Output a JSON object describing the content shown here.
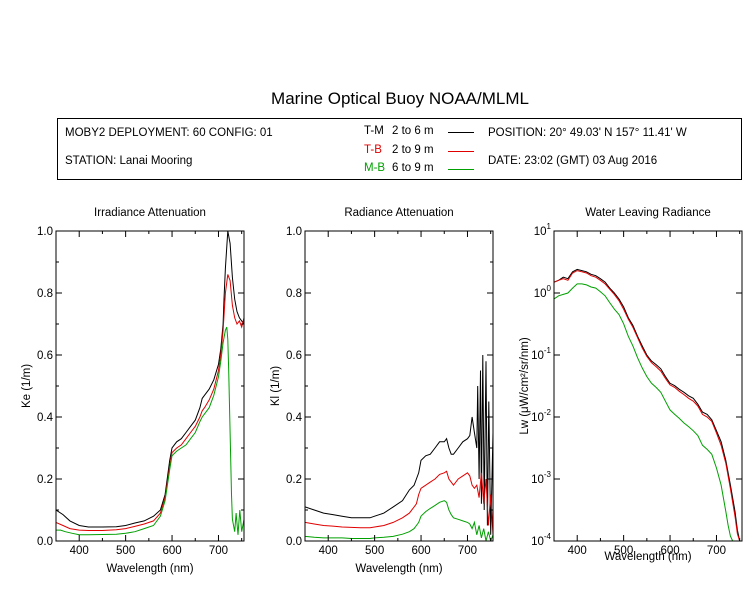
{
  "title": "Marine Optical Buoy NOAA/MLML",
  "info": {
    "deployment": "MOBY2 DEPLOYMENT: 60 CONFIG: 01",
    "station": "STATION: Lanai Mooring",
    "position": "POSITION: 20° 49.03' N   157° 11.41' W",
    "date": "DATE: 23:02 (GMT) 03 Aug 2016",
    "legend": [
      {
        "code": "T-M",
        "range": "2 to 6  m",
        "color": "#000000"
      },
      {
        "code": "T-B",
        "range": "2 to 9  m",
        "color": "#e00000"
      },
      {
        "code": "M-B",
        "range": "6 to 9  m",
        "color": "#00a000"
      }
    ]
  },
  "colors": {
    "tm": "#000000",
    "tb": "#e00000",
    "mb": "#00a000"
  },
  "chart_data": [
    {
      "type": "line",
      "title": "Irradiance Attenuation",
      "xlabel": "Wavelength (nm)",
      "ylabel": "Ke  (1/m)",
      "xlim": [
        350,
        755
      ],
      "ylim": [
        0,
        1
      ],
      "xticks": [
        400,
        500,
        600,
        700
      ],
      "yticks": [
        0,
        0.2,
        0.4,
        0.6,
        0.8,
        1.0
      ],
      "ytick_labels": [
        "0.0",
        "0.2",
        "0.4",
        "0.6",
        "0.8",
        "1.0"
      ],
      "series": [
        {
          "name": "T-M",
          "x": [
            350,
            365,
            380,
            400,
            420,
            450,
            480,
            500,
            520,
            540,
            560,
            575,
            585,
            595,
            600,
            610,
            620,
            630,
            640,
            650,
            660,
            665,
            670,
            680,
            690,
            700,
            705,
            710,
            712,
            715,
            718,
            720,
            725,
            730,
            735,
            740,
            745,
            750,
            755
          ],
          "y": [
            0.1,
            0.085,
            0.065,
            0.05,
            0.045,
            0.045,
            0.046,
            0.05,
            0.058,
            0.065,
            0.08,
            0.1,
            0.15,
            0.26,
            0.3,
            0.32,
            0.33,
            0.35,
            0.37,
            0.39,
            0.43,
            0.46,
            0.47,
            0.49,
            0.52,
            0.57,
            0.62,
            0.7,
            0.78,
            0.88,
            0.95,
            1.0,
            0.96,
            0.85,
            0.78,
            0.74,
            0.72,
            0.71,
            0.7
          ]
        },
        {
          "name": "T-B",
          "x": [
            350,
            365,
            380,
            400,
            420,
            450,
            480,
            500,
            520,
            540,
            560,
            575,
            585,
            595,
            600,
            610,
            620,
            630,
            640,
            650,
            660,
            665,
            670,
            680,
            690,
            700,
            705,
            710,
            715,
            720,
            725,
            730,
            735,
            740,
            745,
            750,
            755
          ],
          "y": [
            0.06,
            0.05,
            0.04,
            0.035,
            0.034,
            0.034,
            0.036,
            0.04,
            0.047,
            0.055,
            0.065,
            0.09,
            0.14,
            0.24,
            0.285,
            0.3,
            0.31,
            0.33,
            0.35,
            0.37,
            0.4,
            0.42,
            0.43,
            0.455,
            0.49,
            0.55,
            0.6,
            0.68,
            0.8,
            0.86,
            0.84,
            0.76,
            0.72,
            0.7,
            0.71,
            0.69,
            0.72
          ]
        },
        {
          "name": "M-B",
          "x": [
            350,
            360,
            370,
            385,
            400,
            420,
            450,
            480,
            500,
            520,
            540,
            560,
            575,
            585,
            595,
            600,
            610,
            620,
            630,
            640,
            650,
            660,
            665,
            670,
            680,
            690,
            700,
            705,
            710,
            715,
            718,
            720,
            722,
            725,
            728,
            730,
            735,
            738,
            742,
            746,
            750,
            755
          ],
          "y": [
            0.035,
            0.035,
            0.03,
            0.025,
            0.02,
            0.02,
            0.021,
            0.022,
            0.025,
            0.03,
            0.04,
            0.05,
            0.08,
            0.13,
            0.23,
            0.275,
            0.29,
            0.3,
            0.31,
            0.33,
            0.35,
            0.385,
            0.4,
            0.41,
            0.43,
            0.47,
            0.53,
            0.58,
            0.64,
            0.68,
            0.69,
            0.65,
            0.55,
            0.35,
            0.15,
            0.07,
            0.03,
            0.09,
            0.02,
            0.1,
            0.03,
            0.07
          ]
        }
      ]
    },
    {
      "type": "line",
      "title": "Radiance Attenuation",
      "xlabel": "Wavelength (nm)",
      "ylabel": "Kl  (1/m)",
      "xlim": [
        350,
        755
      ],
      "ylim": [
        0,
        1
      ],
      "xticks": [
        400,
        500,
        600,
        700
      ],
      "yticks": [
        0,
        0.2,
        0.4,
        0.6,
        0.8,
        1.0
      ],
      "ytick_labels": [
        "0.0",
        "0.2",
        "0.4",
        "0.6",
        "0.8",
        "1.0"
      ],
      "series": [
        {
          "name": "T-M",
          "x": [
            350,
            370,
            390,
            410,
            430,
            450,
            470,
            490,
            500,
            520,
            540,
            560,
            575,
            585,
            590,
            595,
            600,
            610,
            620,
            630,
            640,
            650,
            655,
            660,
            665,
            670,
            680,
            690,
            700,
            705,
            710,
            715,
            720,
            722,
            725,
            728,
            730,
            733,
            736,
            740,
            743,
            746,
            750,
            755
          ],
          "y": [
            0.11,
            0.1,
            0.09,
            0.085,
            0.08,
            0.075,
            0.075,
            0.075,
            0.08,
            0.09,
            0.11,
            0.13,
            0.165,
            0.18,
            0.2,
            0.22,
            0.26,
            0.275,
            0.28,
            0.3,
            0.32,
            0.32,
            0.33,
            0.3,
            0.28,
            0.28,
            0.3,
            0.32,
            0.33,
            0.34,
            0.4,
            0.35,
            0.3,
            0.5,
            0.2,
            0.55,
            0.12,
            0.6,
            0.1,
            0.58,
            0.05,
            0.45,
            0.02,
            0.35
          ]
        },
        {
          "name": "T-B",
          "x": [
            350,
            370,
            390,
            410,
            430,
            450,
            470,
            490,
            500,
            520,
            540,
            560,
            575,
            585,
            590,
            595,
            600,
            610,
            620,
            630,
            640,
            650,
            655,
            660,
            665,
            670,
            680,
            690,
            700,
            705,
            710,
            715,
            720,
            725,
            730,
            735,
            740,
            745,
            750,
            755
          ],
          "y": [
            0.06,
            0.055,
            0.05,
            0.048,
            0.045,
            0.044,
            0.043,
            0.043,
            0.045,
            0.05,
            0.06,
            0.075,
            0.09,
            0.11,
            0.12,
            0.15,
            0.17,
            0.18,
            0.19,
            0.2,
            0.215,
            0.22,
            0.225,
            0.2,
            0.19,
            0.18,
            0.2,
            0.21,
            0.22,
            0.21,
            0.18,
            0.17,
            0.18,
            0.14,
            0.22,
            0.12,
            0.2,
            0.05,
            0.15,
            0.02
          ]
        },
        {
          "name": "M-B",
          "x": [
            350,
            370,
            390,
            410,
            430,
            450,
            470,
            490,
            500,
            520,
            540,
            560,
            575,
            585,
            590,
            595,
            600,
            610,
            620,
            630,
            640,
            650,
            655,
            660,
            665,
            670,
            680,
            690,
            700,
            705,
            710,
            715,
            720,
            725,
            730,
            735,
            740,
            745,
            750,
            755
          ],
          "y": [
            0.015,
            0.012,
            0.01,
            0.01,
            0.01,
            0.008,
            0.008,
            0.008,
            0.01,
            0.012,
            0.015,
            0.022,
            0.03,
            0.04,
            0.05,
            0.06,
            0.08,
            0.095,
            0.105,
            0.115,
            0.125,
            0.13,
            0.125,
            0.1,
            0.085,
            0.075,
            0.07,
            0.065,
            0.06,
            0.055,
            0.04,
            0.06,
            0.02,
            0.05,
            0.01,
            0.04,
            0.0,
            0.03,
            0.0,
            0.02
          ]
        }
      ]
    },
    {
      "type": "line",
      "title": "Water Leaving Radiance",
      "xlabel": "Wavelength (nm)",
      "ylabel": "Lw  (μW/cm²/sr/nm)",
      "xlim": [
        350,
        755
      ],
      "ylim": [
        0.0001,
        10
      ],
      "yscale": "log",
      "xticks": [
        400,
        500,
        600,
        700
      ],
      "ytick_exponents": [
        -4,
        -3,
        -2,
        -1,
        0,
        1
      ],
      "series": [
        {
          "name": "T-M",
          "x": [
            350,
            360,
            370,
            380,
            390,
            400,
            410,
            420,
            430,
            440,
            450,
            460,
            470,
            480,
            490,
            500,
            510,
            520,
            530,
            540,
            550,
            560,
            570,
            580,
            590,
            600,
            610,
            620,
            630,
            640,
            650,
            660,
            670,
            680,
            690,
            700,
            710,
            720,
            730,
            740,
            745,
            750
          ],
          "y": [
            1.5,
            1.6,
            1.8,
            1.7,
            2.2,
            2.4,
            2.3,
            2.2,
            2.0,
            1.9,
            1.7,
            1.5,
            1.2,
            1.0,
            0.8,
            0.6,
            0.4,
            0.3,
            0.2,
            0.14,
            0.1,
            0.08,
            0.07,
            0.06,
            0.045,
            0.035,
            0.032,
            0.028,
            0.025,
            0.022,
            0.02,
            0.016,
            0.012,
            0.011,
            0.009,
            0.006,
            0.004,
            0.002,
            0.0008,
            0.0003,
            0.00015,
            0.0001
          ]
        },
        {
          "name": "T-B",
          "x": [
            350,
            360,
            370,
            380,
            390,
            400,
            410,
            420,
            430,
            440,
            450,
            460,
            470,
            480,
            490,
            500,
            510,
            520,
            530,
            540,
            550,
            560,
            570,
            580,
            590,
            600,
            610,
            620,
            630,
            640,
            650,
            660,
            670,
            680,
            690,
            700,
            710,
            720,
            730,
            740,
            745,
            750
          ],
          "y": [
            1.5,
            1.6,
            1.7,
            1.6,
            2.1,
            2.3,
            2.2,
            2.1,
            1.9,
            1.8,
            1.6,
            1.4,
            1.15,
            0.95,
            0.75,
            0.55,
            0.38,
            0.28,
            0.19,
            0.13,
            0.095,
            0.075,
            0.065,
            0.055,
            0.042,
            0.033,
            0.03,
            0.026,
            0.023,
            0.02,
            0.018,
            0.015,
            0.011,
            0.01,
            0.0085,
            0.0055,
            0.0035,
            0.0018,
            0.0007,
            0.00025,
            0.00013,
            0.0001
          ]
        },
        {
          "name": "M-B",
          "x": [
            350,
            360,
            370,
            380,
            390,
            400,
            410,
            420,
            430,
            440,
            450,
            460,
            470,
            480,
            490,
            500,
            510,
            520,
            530,
            540,
            550,
            560,
            570,
            580,
            590,
            600,
            610,
            620,
            630,
            640,
            650,
            660,
            670,
            680,
            690,
            700,
            710,
            720,
            725,
            730,
            735
          ],
          "y": [
            0.8,
            0.9,
            0.95,
            1.0,
            1.2,
            1.4,
            1.4,
            1.35,
            1.25,
            1.2,
            1.05,
            0.9,
            0.7,
            0.55,
            0.45,
            0.32,
            0.2,
            0.14,
            0.09,
            0.062,
            0.045,
            0.035,
            0.03,
            0.025,
            0.018,
            0.013,
            0.011,
            0.0095,
            0.008,
            0.007,
            0.006,
            0.005,
            0.0035,
            0.003,
            0.0025,
            0.0015,
            0.0008,
            0.0003,
            0.00018,
            0.00012,
            0.0001
          ]
        }
      ]
    }
  ]
}
